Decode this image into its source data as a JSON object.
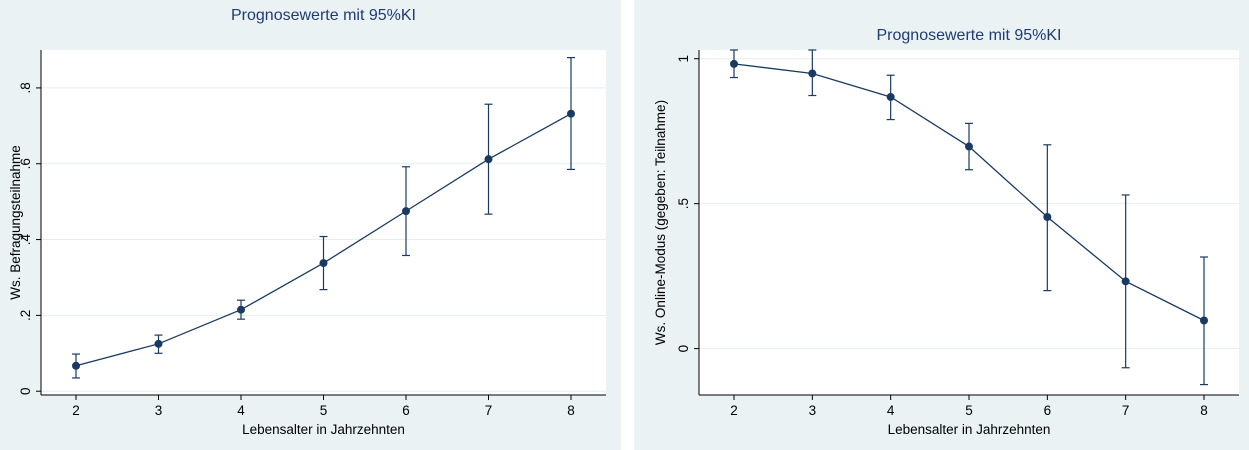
{
  "colors": {
    "panel_bg": "#eaf2f3",
    "plot_bg": "#ffffff",
    "series": "#1a3a63",
    "grid": "#e8eeee",
    "title": "#1f3b73"
  },
  "chart_data": [
    {
      "type": "line",
      "title": "Prognosewerte mit 95%KI",
      "xlabel": "Lebensalter in Jahrzehnten",
      "ylabel": "Ws. Befragungsteilnahme",
      "xlim": [
        2,
        8
      ],
      "ylim": [
        -0.01,
        0.9
      ],
      "x_ticks": [
        2,
        3,
        4,
        5,
        6,
        7,
        8
      ],
      "x_tick_labels": [
        "2",
        "3",
        "4",
        "5",
        "6",
        "7",
        "8"
      ],
      "y_ticks": [
        0,
        0.2,
        0.4,
        0.6,
        0.8
      ],
      "y_tick_labels": [
        "0",
        ".2",
        ".4",
        ".6",
        ".8"
      ],
      "grid": true,
      "series": [
        {
          "x": [
            2,
            3,
            4,
            5,
            6,
            7,
            8
          ],
          "values": [
            0.067,
            0.125,
            0.215,
            0.338,
            0.475,
            0.612,
            0.732
          ],
          "ci_lower": [
            0.035,
            0.1,
            0.19,
            0.268,
            0.358,
            0.467,
            0.585
          ],
          "ci_upper": [
            0.098,
            0.148,
            0.24,
            0.408,
            0.592,
            0.757,
            0.88
          ]
        }
      ]
    },
    {
      "type": "line",
      "title": "Prognosewerte mit 95%KI",
      "xlabel": "Lebensalter in Jahrzehnten",
      "ylabel": "Ws. Online-Modus (gegeben: Teilnahme)",
      "xlim": [
        2,
        8
      ],
      "ylim": [
        -0.16,
        1.03
      ],
      "x_ticks": [
        2,
        3,
        4,
        5,
        6,
        7,
        8
      ],
      "x_tick_labels": [
        "2",
        "3",
        "4",
        "5",
        "6",
        "7",
        "8"
      ],
      "y_ticks": [
        0,
        0.5,
        1
      ],
      "y_tick_labels": [
        "0",
        ".5",
        "1"
      ],
      "grid": true,
      "series": [
        {
          "x": [
            2,
            3,
            4,
            5,
            6,
            7,
            8
          ],
          "values": [
            0.982,
            0.949,
            0.868,
            0.697,
            0.454,
            0.232,
            0.097
          ],
          "ci_lower": [
            0.935,
            0.873,
            0.79,
            0.617,
            0.2,
            -0.066,
            -0.124
          ],
          "ci_upper": [
            1.03,
            1.03,
            0.943,
            0.777,
            0.703,
            0.53,
            0.316
          ]
        }
      ]
    }
  ]
}
